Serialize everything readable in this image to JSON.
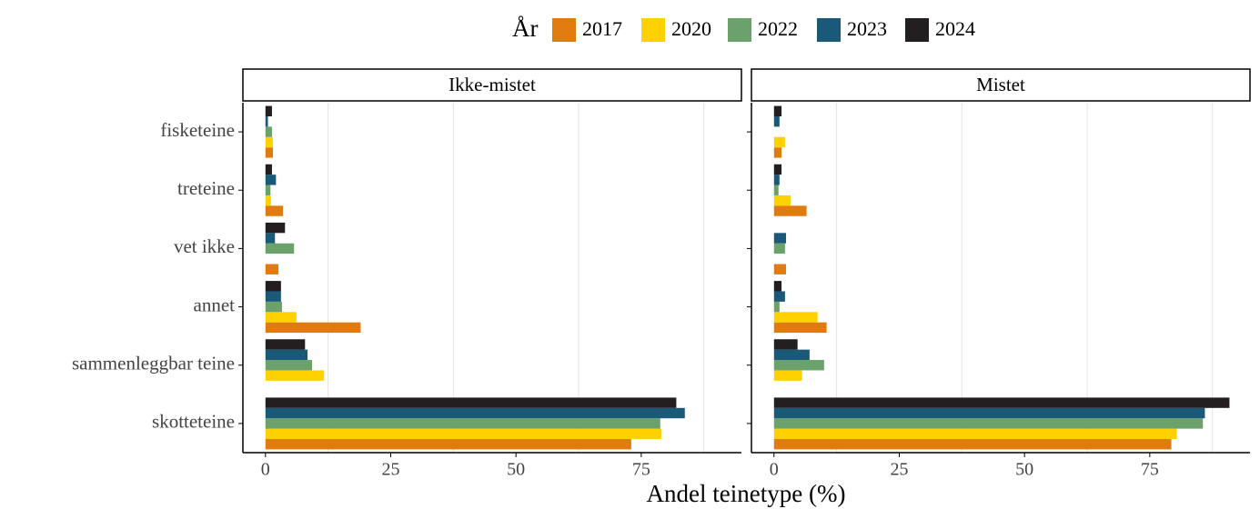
{
  "chart_data": {
    "type": "bar",
    "orientation": "horizontal",
    "legend_title": "År",
    "x_label": "Andel teinetype (%)",
    "categories": [
      "fisketeine",
      "treteine",
      "vet ikke",
      "annet",
      "sammenleggbar teine",
      "skotteteine"
    ],
    "panels": [
      "Ikke-mistet",
      "Mistet"
    ],
    "series": [
      {
        "name": "2017",
        "color": "#e07b10",
        "values": [
          [
            1.5,
            3.5,
            2.6,
            19,
            null,
            73
          ],
          [
            1.5,
            6.5,
            2.4,
            10.5,
            null,
            79.3
          ]
        ]
      },
      {
        "name": "2020",
        "color": "#ffd100",
        "values": [
          [
            1.5,
            1.1,
            null,
            6.2,
            11.7,
            79
          ],
          [
            2.2,
            3.3,
            null,
            8.7,
            5.6,
            80.4
          ]
        ]
      },
      {
        "name": "2022",
        "color": "#6ba26b",
        "values": [
          [
            1.3,
            1.0,
            5.7,
            3.3,
            9.3,
            78.8
          ],
          [
            null,
            0.9,
            2.2,
            1.1,
            10,
            85.6
          ]
        ]
      },
      {
        "name": "2023",
        "color": "#1a5a78",
        "values": [
          [
            0.5,
            2.1,
            1.9,
            3.1,
            8.4,
            83.7
          ],
          [
            1.1,
            1.1,
            2.4,
            2.2,
            7.1,
            86
          ]
        ]
      },
      {
        "name": "2024",
        "color": "#231f20",
        "values": [
          [
            1.3,
            1.3,
            3.9,
            3.1,
            7.9,
            82
          ],
          [
            1.5,
            1.5,
            null,
            1.5,
            4.7,
            90.9
          ]
        ]
      }
    ],
    "xlim": [
      -4.5,
      95
    ],
    "xticks": [
      0,
      25,
      50,
      75
    ],
    "minor_gridlines": [
      12.5,
      37.5,
      62.5,
      87.5
    ],
    "grid": true
  }
}
